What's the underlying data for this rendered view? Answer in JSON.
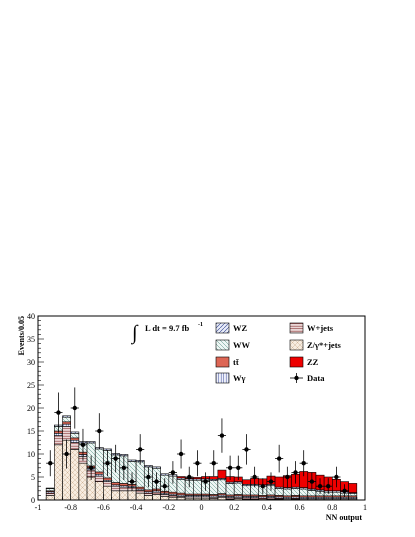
{
  "chart_data": {
    "type": "bar",
    "stacked": true,
    "histogram": true,
    "xlabel": "NN output",
    "ylabel": "Events/0.05",
    "xlim": [
      -1,
      1
    ],
    "ylim": [
      0,
      40
    ],
    "x_ticks": [
      "-1",
      "-0.8",
      "-0.6",
      "-0.4",
      "-0.2",
      "0",
      "0.2",
      "0.4",
      "0.6",
      "0.8",
      "1"
    ],
    "y_ticks": [
      "0",
      "5",
      "10",
      "15",
      "20",
      "25",
      "30",
      "35",
      "40"
    ],
    "annotation": "L dt = 9.7 fb",
    "annotation_sup": "-1",
    "bin_edges": [
      -0.95,
      -0.9,
      -0.85,
      -0.8,
      -0.75,
      -0.7,
      -0.65,
      -0.6,
      -0.55,
      -0.5,
      -0.45,
      -0.4,
      -0.35,
      -0.3,
      -0.25,
      -0.2,
      -0.15,
      -0.1,
      -0.05,
      0.0,
      0.05,
      0.1,
      0.15,
      0.2,
      0.25,
      0.3,
      0.35,
      0.4,
      0.45,
      0.5,
      0.55,
      0.6,
      0.65,
      0.7,
      0.75,
      0.8,
      0.85,
      0.9,
      0.95
    ],
    "series": [
      {
        "name": "Z/γ*+jets",
        "fill": "#f5e6d6",
        "pattern": "crosshatch",
        "values": [
          1,
          12,
          13,
          11,
          8,
          5,
          4,
          3,
          2,
          2,
          2,
          1.5,
          1,
          1.2,
          0.8,
          0.6,
          0.5,
          0.4,
          0.4,
          0.4,
          0.3,
          0.5,
          0.2,
          0.3,
          0.2,
          0.2,
          0.1,
          0.2,
          0.2,
          0.1,
          0.2,
          0.1,
          0.1,
          0.1,
          0.1,
          0.1,
          0.1,
          0.1
        ]
      },
      {
        "name": "W+jets",
        "fill": "#ead6d6",
        "pattern": "hlines",
        "values": [
          0.5,
          2,
          3,
          1.5,
          1.5,
          1.5,
          1.2,
          1,
          1,
          0.8,
          0.7,
          0.6,
          0.5,
          0.5,
          0.4,
          0.4,
          0.3,
          0.3,
          0.3,
          0.3,
          0.3,
          0.3,
          0.3,
          0.3,
          0.3,
          0.3,
          0.3,
          0.3,
          0.2,
          0.2,
          0.2,
          0.2,
          0.2,
          0.2,
          0.2,
          0.2,
          0.2,
          0.2
        ]
      },
      {
        "name": "Wγ",
        "fill": "#eef0fa",
        "pattern": "vlines",
        "values": [
          0.3,
          0.5,
          0.5,
          0.5,
          0.4,
          0.4,
          0.4,
          0.3,
          0.3,
          0.3,
          0.3,
          0.3,
          0.3,
          0.3,
          0.3,
          0.3,
          0.3,
          0.3,
          0.3,
          0.3,
          0.3,
          0.3,
          0.3,
          0.3,
          0.3,
          0.3,
          0.3,
          0.3,
          0.3,
          0.3,
          0.3,
          0.3,
          0.3,
          0.3,
          0.3,
          0.3,
          0.3,
          0.3
        ]
      },
      {
        "name": "tt̄",
        "fill": "#dd6655",
        "pattern": "solid",
        "values": [
          0.2,
          0.5,
          0.5,
          0.5,
          0.5,
          0.5,
          0.5,
          0.5,
          0.5,
          0.5,
          0.4,
          0.4,
          0.4,
          0.4,
          0.4,
          0.4,
          0.4,
          0.3,
          0.3,
          0.3,
          0.3,
          0.3,
          0.3,
          0.3,
          0.3,
          0.3,
          0.3,
          0.3,
          0.3,
          0.3,
          0.3,
          0.3,
          0.3,
          0.3,
          0.3,
          0.3,
          0.3,
          0.3
        ]
      },
      {
        "name": "WW",
        "fill": "#e8f4f2",
        "pattern": "diag-back",
        "values": [
          0.5,
          1,
          1,
          1,
          2,
          5,
          5,
          6,
          6,
          6,
          5,
          5.5,
          5,
          4.5,
          3.5,
          3.5,
          3,
          3,
          3,
          3,
          3,
          3,
          2.5,
          2.5,
          2,
          2,
          2,
          2,
          1.5,
          1.5,
          1.5,
          1.5,
          1.2,
          1,
          0.8,
          0.8,
          0.6,
          0.5
        ]
      },
      {
        "name": "WZ",
        "fill": "#e8ecf8",
        "pattern": "diag-fwd",
        "values": [
          0.1,
          0.3,
          0.3,
          0.3,
          0.3,
          0.3,
          0.3,
          0.3,
          0.3,
          0.3,
          0.3,
          0.3,
          0.3,
          0.3,
          0.3,
          0.3,
          0.3,
          0.3,
          0.3,
          0.3,
          0.3,
          0.3,
          0.3,
          0.3,
          0.3,
          0.3,
          0.3,
          0.3,
          0.3,
          0.3,
          0.3,
          0.3,
          0.3,
          0.3,
          0.3,
          0.3,
          0.3,
          0.2
        ]
      },
      {
        "name": "ZZ",
        "fill": "#ee0000",
        "pattern": "solid",
        "values": [
          0,
          0,
          0,
          0,
          0,
          0,
          0,
          0,
          0,
          0,
          0,
          0,
          0,
          0,
          0,
          0,
          0.3,
          0.2,
          0.3,
          0.5,
          0.6,
          1.8,
          1.2,
          1.0,
          1.0,
          1.3,
          1.3,
          1.8,
          2.2,
          2.6,
          2.8,
          3.5,
          3.6,
          3.2,
          3.0,
          2.5,
          2.2,
          2.0
        ]
      },
      {
        "name": "Data",
        "type": "points",
        "x": [
          -0.925,
          -0.875,
          -0.825,
          -0.775,
          -0.725,
          -0.675,
          -0.625,
          -0.575,
          -0.525,
          -0.475,
          -0.425,
          -0.375,
          -0.325,
          -0.275,
          -0.225,
          -0.175,
          -0.125,
          -0.075,
          -0.025,
          0.025,
          0.075,
          0.125,
          0.175,
          0.225,
          0.275,
          0.325,
          0.375,
          0.425,
          0.475,
          0.525,
          0.575,
          0.625,
          0.675,
          0.725,
          0.775,
          0.825,
          0.875,
          0.925
        ],
        "values": [
          8,
          19,
          10,
          20,
          12,
          7,
          15,
          8,
          9,
          7,
          4,
          11,
          5,
          4,
          3,
          6,
          10,
          5,
          8,
          4,
          8,
          14,
          7,
          7,
          11,
          5,
          3,
          4,
          9,
          5,
          6,
          8,
          4,
          3,
          3,
          5,
          2,
          0
        ]
      }
    ],
    "legend": {
      "placement": "top-right",
      "columns": [
        [
          "WZ",
          "WW",
          "tt̄",
          "Wγ"
        ],
        [
          "W+jets",
          "Z/γ*+jets",
          "ZZ",
          "Data"
        ]
      ]
    }
  }
}
